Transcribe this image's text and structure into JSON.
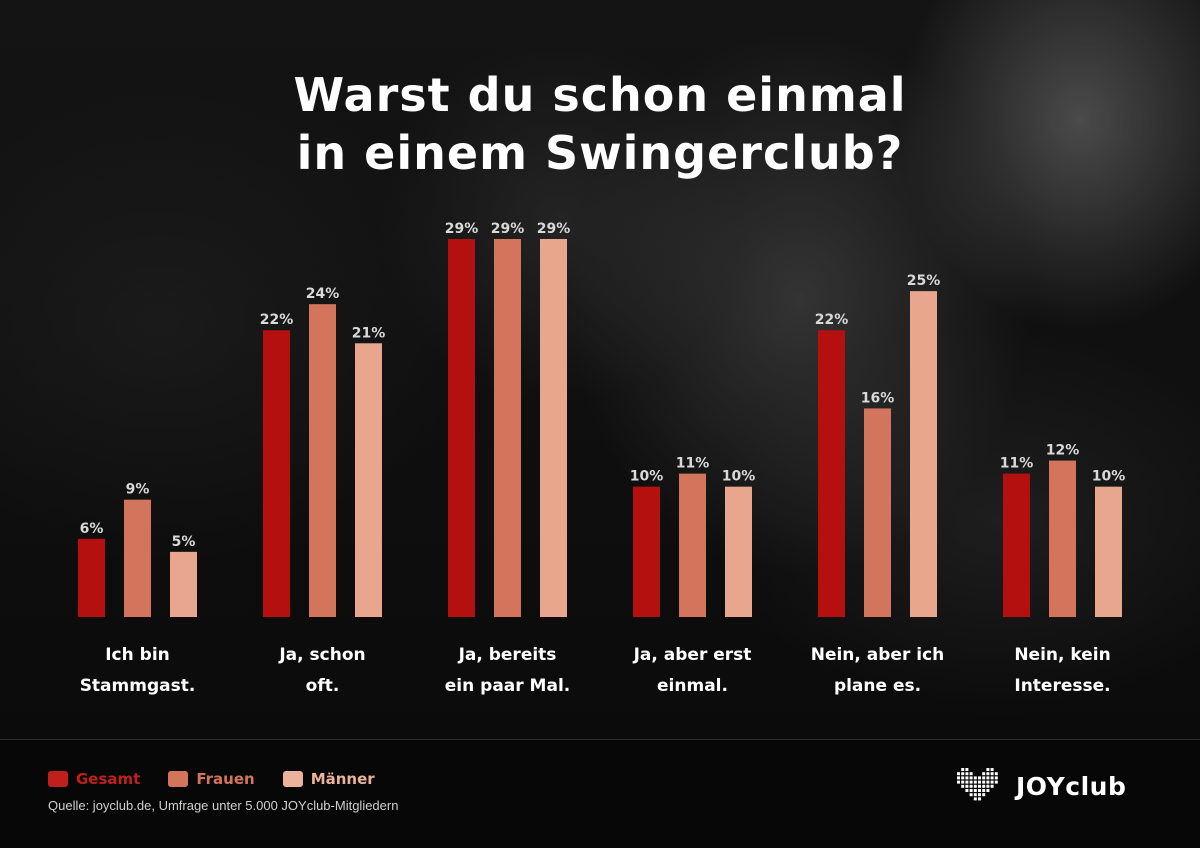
{
  "title_lines": [
    "Warst du schon einmal",
    "in einem Swingerclub?"
  ],
  "colors": {
    "gesamt": "#b3100f",
    "frauen": "#d3745c",
    "maenner": "#e8a68e"
  },
  "chart_data": {
    "type": "bar",
    "title": "Warst du schon einmal in einem Swingerclub?",
    "categories": [
      [
        "Ich bin",
        "Stammgast."
      ],
      [
        "Ja, schon",
        "oft."
      ],
      [
        "Ja, bereits",
        "ein paar Mal."
      ],
      [
        "Ja, aber erst",
        "einmal."
      ],
      [
        "Nein, aber ich",
        "plane es."
      ],
      [
        "Nein, kein",
        "Interesse."
      ]
    ],
    "series": [
      {
        "name": "Gesamt",
        "values": [
          6,
          22,
          29,
          10,
          22,
          11
        ]
      },
      {
        "name": "Frauen",
        "values": [
          9,
          24,
          29,
          11,
          16,
          12
        ]
      },
      {
        "name": "Männer",
        "values": [
          5,
          21,
          29,
          10,
          25,
          10
        ]
      }
    ],
    "value_suffix": "%",
    "ylim": [
      0,
      29
    ],
    "grid": false,
    "legend_position": "bottom-left"
  },
  "legend": [
    {
      "label": "Gesamt",
      "color": "#c0201d"
    },
    {
      "label": "Frauen",
      "color": "#d3745c"
    },
    {
      "label": "Männer",
      "color": "#ebb39c"
    }
  ],
  "source": "Quelle: joyclub.de, Umfrage unter 5.000 JOYclub-Mitgliedern",
  "logo_text": "JOYclub",
  "logo_icon": "pixel-heart-icon"
}
